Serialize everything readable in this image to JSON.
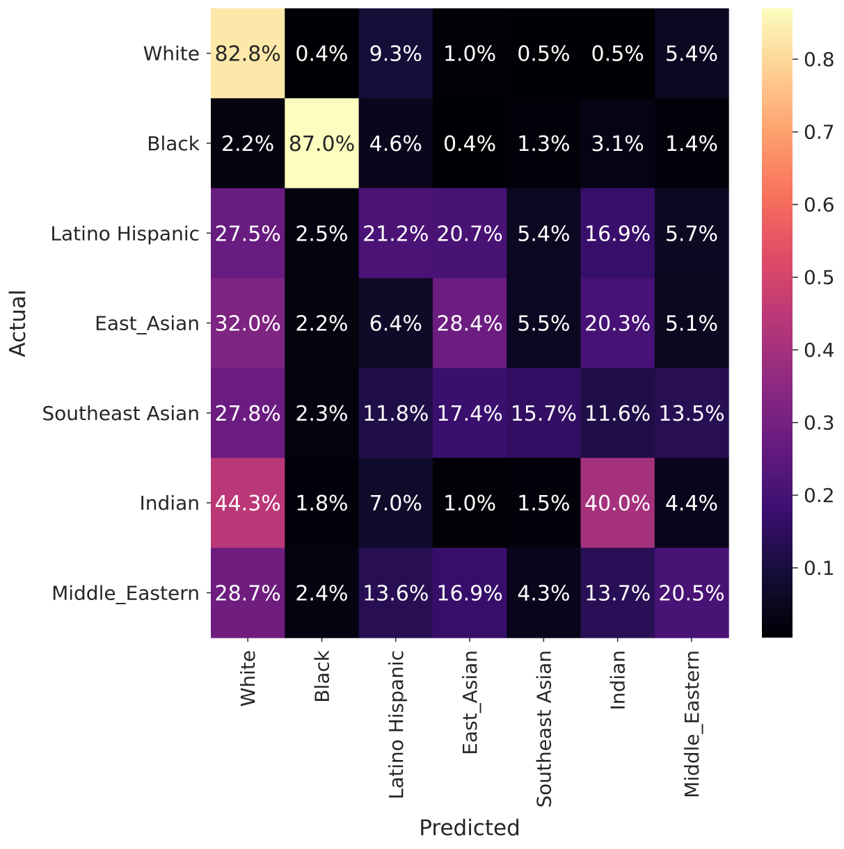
{
  "chart_data": {
    "type": "heatmap",
    "title": "",
    "xlabel": "Predicted",
    "ylabel": "Actual",
    "x_categories": [
      "White",
      "Black",
      "Latino Hispanic",
      "East_Asian",
      "Southeast Asian",
      "Indian",
      "Middle_Eastern"
    ],
    "y_categories": [
      "White",
      "Black",
      "Latino Hispanic",
      "East_Asian",
      "Southeast Asian",
      "Indian",
      "Middle_Eastern"
    ],
    "values": [
      [
        0.828,
        0.004,
        0.093,
        0.01,
        0.005,
        0.005,
        0.054
      ],
      [
        0.022,
        0.87,
        0.046,
        0.004,
        0.013,
        0.031,
        0.014
      ],
      [
        0.275,
        0.025,
        0.212,
        0.207,
        0.054,
        0.169,
        0.057
      ],
      [
        0.32,
        0.022,
        0.064,
        0.284,
        0.055,
        0.203,
        0.051
      ],
      [
        0.278,
        0.023,
        0.118,
        0.174,
        0.157,
        0.116,
        0.135
      ],
      [
        0.443,
        0.018,
        0.07,
        0.01,
        0.015,
        0.4,
        0.044
      ],
      [
        0.287,
        0.024,
        0.136,
        0.169,
        0.043,
        0.137,
        0.205
      ]
    ],
    "cell_labels": [
      [
        "82.8%",
        "0.4%",
        "9.3%",
        "1.0%",
        "0.5%",
        "0.5%",
        "5.4%"
      ],
      [
        "2.2%",
        "87.0%",
        "4.6%",
        "0.4%",
        "1.3%",
        "3.1%",
        "1.4%"
      ],
      [
        "27.5%",
        "2.5%",
        "21.2%",
        "20.7%",
        "5.4%",
        "16.9%",
        "5.7%"
      ],
      [
        "32.0%",
        "2.2%",
        "6.4%",
        "28.4%",
        "5.5%",
        "20.3%",
        "5.1%"
      ],
      [
        "27.8%",
        "2.3%",
        "11.8%",
        "17.4%",
        "15.7%",
        "11.6%",
        "13.5%"
      ],
      [
        "44.3%",
        "1.8%",
        "7.0%",
        "1.0%",
        "1.5%",
        "40.0%",
        "4.4%"
      ],
      [
        "28.7%",
        "2.4%",
        "13.6%",
        "16.9%",
        "4.3%",
        "13.7%",
        "20.5%"
      ]
    ],
    "colormap": "magma",
    "vmin": 0.004,
    "vmax": 0.87,
    "colorbar": {
      "ticks": [
        0.1,
        0.2,
        0.3,
        0.4,
        0.5,
        0.6,
        0.7,
        0.8
      ],
      "tick_labels": [
        "0.1",
        "0.2",
        "0.3",
        "0.4",
        "0.5",
        "0.6",
        "0.7",
        "0.8"
      ]
    }
  }
}
